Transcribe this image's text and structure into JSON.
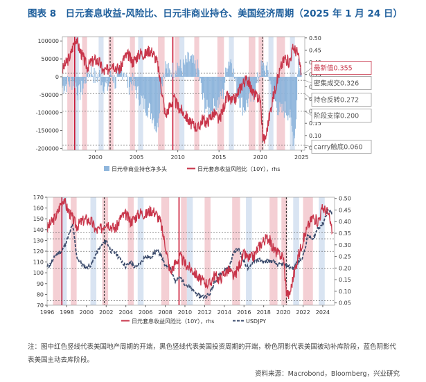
{
  "title": "图表 8　日元套息收益-风险比、日元非商业持仓、美国经济周期（2025 年 1 月 24 日）",
  "note": "注：图中红色竖线代表美国地产周期的开端，黑色竖线代表美国投资周期的开端，粉色阴影代表美国被动补库阶段，蓝色阴影代表美国主动去库阶段。",
  "source": "资料来源：Macrobond，Bloomberg，兴业研究",
  "colors": {
    "red": "#c8354a",
    "blue_bar": "#8fb6dc",
    "navy": "#3a4a6b",
    "pink_shade": "#f4cfd4",
    "blue_shade": "#d9e4f2",
    "title": "#1f5f9c"
  },
  "chart_data": [
    {
      "type": "bar+line",
      "xlim": [
        1996.0,
        2025.4
      ],
      "x_ticks": [
        "2000",
        "2005",
        "2010",
        "2015",
        "2020",
        "2025"
      ],
      "y_left_ticks": [
        "100000",
        "50000",
        "0",
        "-50000",
        "-100000",
        "-150000",
        "-200000"
      ],
      "y_left_lim": [
        -205000,
        112000
      ],
      "y_right_ticks": [
        "0.50",
        "0.45",
        "0.40",
        "0.35",
        "0.30",
        "0.25",
        "0.20",
        "0.15",
        "0.10",
        "0.05"
      ],
      "y_right_lim": [
        0.04,
        0.505
      ],
      "legend": [
        "日元非商业持仓净多头",
        "日元套息收益风险比（10Y），rhs"
      ],
      "annotations": [
        {
          "label": "最新值0.355",
          "value": 0.355,
          "highlight": true
        },
        {
          "label": "密集成交0.326",
          "value": 0.326
        },
        {
          "label": "持仓反转0.272",
          "value": 0.272
        },
        {
          "label": "阶段支撑0.200",
          "value": 0.2
        },
        {
          "label": "carry触底0.060",
          "value": 0.06
        }
      ],
      "series": [
        {
          "name": "日元非商业持仓净多头",
          "axis": "left",
          "kind": "bar",
          "x": [
            1996.0,
            1996.5,
            1997.0,
            1997.5,
            1998.0,
            1998.5,
            1999.0,
            1999.5,
            2000.0,
            2000.5,
            2001.0,
            2001.5,
            2002.0,
            2002.5,
            2003.0,
            2003.5,
            2004.0,
            2004.5,
            2005.0,
            2005.5,
            2006.0,
            2006.5,
            2007.0,
            2007.5,
            2008.0,
            2008.5,
            2009.0,
            2009.5,
            2010.0,
            2010.5,
            2011.0,
            2011.5,
            2012.0,
            2012.5,
            2013.0,
            2013.5,
            2014.0,
            2014.5,
            2015.0,
            2015.5,
            2016.0,
            2016.5,
            2017.0,
            2017.5,
            2018.0,
            2018.5,
            2019.0,
            2019.5,
            2020.0,
            2020.5,
            2021.0,
            2021.5,
            2022.0,
            2022.5,
            2023.0,
            2023.5,
            2024.0,
            2024.3,
            2024.6,
            2024.8,
            2025.0
          ],
          "values": [
            -30000,
            -20000,
            -15000,
            -10000,
            -50000,
            -30000,
            10000,
            20000,
            -5000,
            5000,
            -20000,
            -30000,
            10000,
            -20000,
            15000,
            20000,
            -25000,
            -15000,
            -40000,
            -60000,
            -80000,
            -90000,
            -110000,
            -150000,
            -20000,
            30000,
            10000,
            20000,
            35000,
            20000,
            40000,
            50000,
            30000,
            20000,
            -60000,
            -90000,
            -100000,
            -80000,
            -70000,
            -50000,
            40000,
            50000,
            -20000,
            -60000,
            -90000,
            -70000,
            -60000,
            -30000,
            20000,
            30000,
            10000,
            -50000,
            -80000,
            -100000,
            -90000,
            -100000,
            -170000,
            -140000,
            50000,
            20000,
            10000
          ]
        },
        {
          "name": "日元套息收益风险比（10Y）",
          "axis": "right",
          "kind": "line",
          "x": [
            1996.0,
            1996.5,
            1997.0,
            1997.4,
            1997.7,
            1998.0,
            1998.5,
            1999.0,
            1999.5,
            2000.0,
            2000.5,
            2001.0,
            2001.5,
            2002.0,
            2002.5,
            2003.0,
            2003.5,
            2004.0,
            2004.5,
            2005.0,
            2005.5,
            2006.0,
            2006.5,
            2007.0,
            2007.5,
            2008.0,
            2008.5,
            2009.0,
            2009.5,
            2010.0,
            2010.5,
            2011.0,
            2011.5,
            2012.0,
            2012.5,
            2013.0,
            2013.5,
            2014.0,
            2014.5,
            2015.0,
            2015.5,
            2016.0,
            2016.5,
            2017.0,
            2017.5,
            2018.0,
            2018.5,
            2019.0,
            2019.5,
            2020.0,
            2020.3,
            2020.6,
            2021.0,
            2021.5,
            2022.0,
            2022.5,
            2023.0,
            2023.5,
            2024.0,
            2024.5,
            2025.0
          ],
          "values": [
            0.37,
            0.4,
            0.43,
            0.48,
            0.5,
            0.46,
            0.42,
            0.38,
            0.4,
            0.41,
            0.4,
            0.36,
            0.37,
            0.4,
            0.38,
            0.37,
            0.42,
            0.43,
            0.4,
            0.42,
            0.44,
            0.43,
            0.45,
            0.44,
            0.4,
            0.3,
            0.18,
            0.22,
            0.25,
            0.22,
            0.2,
            0.18,
            0.15,
            0.14,
            0.13,
            0.17,
            0.15,
            0.18,
            0.19,
            0.16,
            0.21,
            0.26,
            0.24,
            0.25,
            0.29,
            0.32,
            0.33,
            0.28,
            0.26,
            0.25,
            0.1,
            0.08,
            0.16,
            0.25,
            0.32,
            0.38,
            0.42,
            0.4,
            0.46,
            0.44,
            0.355
          ]
        }
      ]
    },
    {
      "type": "line",
      "xlim": [
        1996.0,
        2025.2
      ],
      "x_ticks": [
        "1996",
        "1998",
        "2000",
        "2002",
        "2004",
        "2006",
        "2008",
        "2010",
        "2012",
        "2014",
        "2016",
        "2018",
        "2020",
        "2022",
        "2024"
      ],
      "y_left_ticks": [
        "170",
        "160",
        "150",
        "140",
        "130",
        "120",
        "110",
        "100",
        "90",
        "80",
        "70"
      ],
      "y_left_lim": [
        70,
        170
      ],
      "y_right_ticks": [
        "0.50",
        "0.45",
        "0.40",
        "0.35",
        "0.30",
        "0.25",
        "0.20",
        "0.15",
        "0.10",
        "0.05"
      ],
      "y_right_lim": [
        0.04,
        0.505
      ],
      "legend": [
        "日元套息收益风险比（10Y），rhs",
        "USDJPY"
      ],
      "series": [
        {
          "name": "USDJPY",
          "axis": "left",
          "style": "dashed",
          "x": [
            1996.0,
            1996.5,
            1997.0,
            1997.5,
            1998.0,
            1998.6,
            1999.0,
            1999.5,
            2000.0,
            2000.5,
            2001.0,
            2001.5,
            2002.0,
            2002.5,
            2003.0,
            2003.5,
            2004.0,
            2004.5,
            2005.0,
            2005.5,
            2006.0,
            2006.5,
            2007.0,
            2007.5,
            2008.0,
            2008.5,
            2009.0,
            2009.5,
            2010.0,
            2010.5,
            2011.0,
            2011.5,
            2012.0,
            2012.5,
            2013.0,
            2013.5,
            2014.0,
            2014.5,
            2015.0,
            2015.5,
            2016.0,
            2016.5,
            2017.0,
            2017.5,
            2018.0,
            2018.5,
            2019.0,
            2019.5,
            2020.0,
            2020.5,
            2021.0,
            2021.5,
            2022.0,
            2022.5,
            2023.0,
            2023.5,
            2024.0,
            2024.5,
            2025.0
          ],
          "values": [
            105,
            110,
            118,
            120,
            130,
            145,
            115,
            108,
            105,
            108,
            118,
            125,
            130,
            120,
            118,
            112,
            106,
            110,
            104,
            110,
            115,
            114,
            120,
            118,
            106,
            107,
            92,
            96,
            90,
            86,
            82,
            78,
            78,
            80,
            92,
            98,
            102,
            105,
            120,
            122,
            110,
            103,
            112,
            112,
            110,
            111,
            110,
            107,
            108,
            106,
            104,
            110,
            115,
            135,
            130,
            142,
            145,
            158,
            155
          ]
        },
        {
          "name": "日元套息收益风险比（10Y）",
          "axis": "right",
          "style": "solid",
          "x": [
            1996.0,
            1996.5,
            1997.0,
            1997.4,
            1997.7,
            1998.0,
            1998.5,
            1999.0,
            1999.5,
            2000.0,
            2000.5,
            2001.0,
            2001.5,
            2002.0,
            2002.5,
            2003.0,
            2003.5,
            2004.0,
            2004.5,
            2005.0,
            2005.5,
            2006.0,
            2006.5,
            2007.0,
            2007.5,
            2008.0,
            2008.5,
            2009.0,
            2009.5,
            2010.0,
            2010.5,
            2011.0,
            2011.5,
            2012.0,
            2012.5,
            2013.0,
            2013.5,
            2014.0,
            2014.5,
            2015.0,
            2015.5,
            2016.0,
            2016.5,
            2017.0,
            2017.5,
            2018.0,
            2018.5,
            2019.0,
            2019.5,
            2020.0,
            2020.3,
            2020.6,
            2021.0,
            2021.5,
            2022.0,
            2022.5,
            2023.0,
            2023.5,
            2024.0,
            2024.5,
            2025.0
          ],
          "values": [
            0.37,
            0.4,
            0.43,
            0.48,
            0.5,
            0.46,
            0.42,
            0.38,
            0.4,
            0.41,
            0.4,
            0.36,
            0.37,
            0.4,
            0.38,
            0.37,
            0.42,
            0.43,
            0.4,
            0.42,
            0.44,
            0.43,
            0.45,
            0.44,
            0.4,
            0.3,
            0.18,
            0.22,
            0.25,
            0.22,
            0.2,
            0.18,
            0.15,
            0.14,
            0.13,
            0.17,
            0.15,
            0.18,
            0.19,
            0.16,
            0.21,
            0.26,
            0.24,
            0.25,
            0.29,
            0.32,
            0.33,
            0.28,
            0.26,
            0.25,
            0.1,
            0.08,
            0.16,
            0.25,
            0.32,
            0.38,
            0.42,
            0.4,
            0.46,
            0.44,
            0.355
          ]
        }
      ],
      "right_axis_reference_lines": [
        0.355,
        0.326,
        0.272,
        0.2,
        0.06
      ]
    }
  ],
  "cycle_shading": {
    "pink": [
      [
        1996.6,
        1997.4
      ],
      [
        1998.4,
        1999.0
      ],
      [
        2001.6,
        2002.2
      ],
      [
        2004.2,
        2004.8
      ],
      [
        2007.6,
        2008.4
      ],
      [
        2009.6,
        2010.2
      ],
      [
        2012.0,
        2012.6
      ],
      [
        2014.8,
        2015.6
      ],
      [
        2018.6,
        2019.4
      ],
      [
        2019.8,
        2020.4
      ],
      [
        2022.0,
        2023.0
      ]
    ],
    "blue": [
      [
        1997.4,
        1998.0
      ],
      [
        2000.4,
        2001.0
      ],
      [
        2005.2,
        2005.8
      ],
      [
        2010.2,
        2010.8
      ],
      [
        2016.2,
        2016.8
      ],
      [
        2021.0,
        2021.6
      ],
      [
        2023.6,
        2024.2
      ]
    ],
    "red_lines": [
      1997.5,
      2009.4
    ],
    "black_lines": [
      2001.8,
      2020.3
    ]
  }
}
